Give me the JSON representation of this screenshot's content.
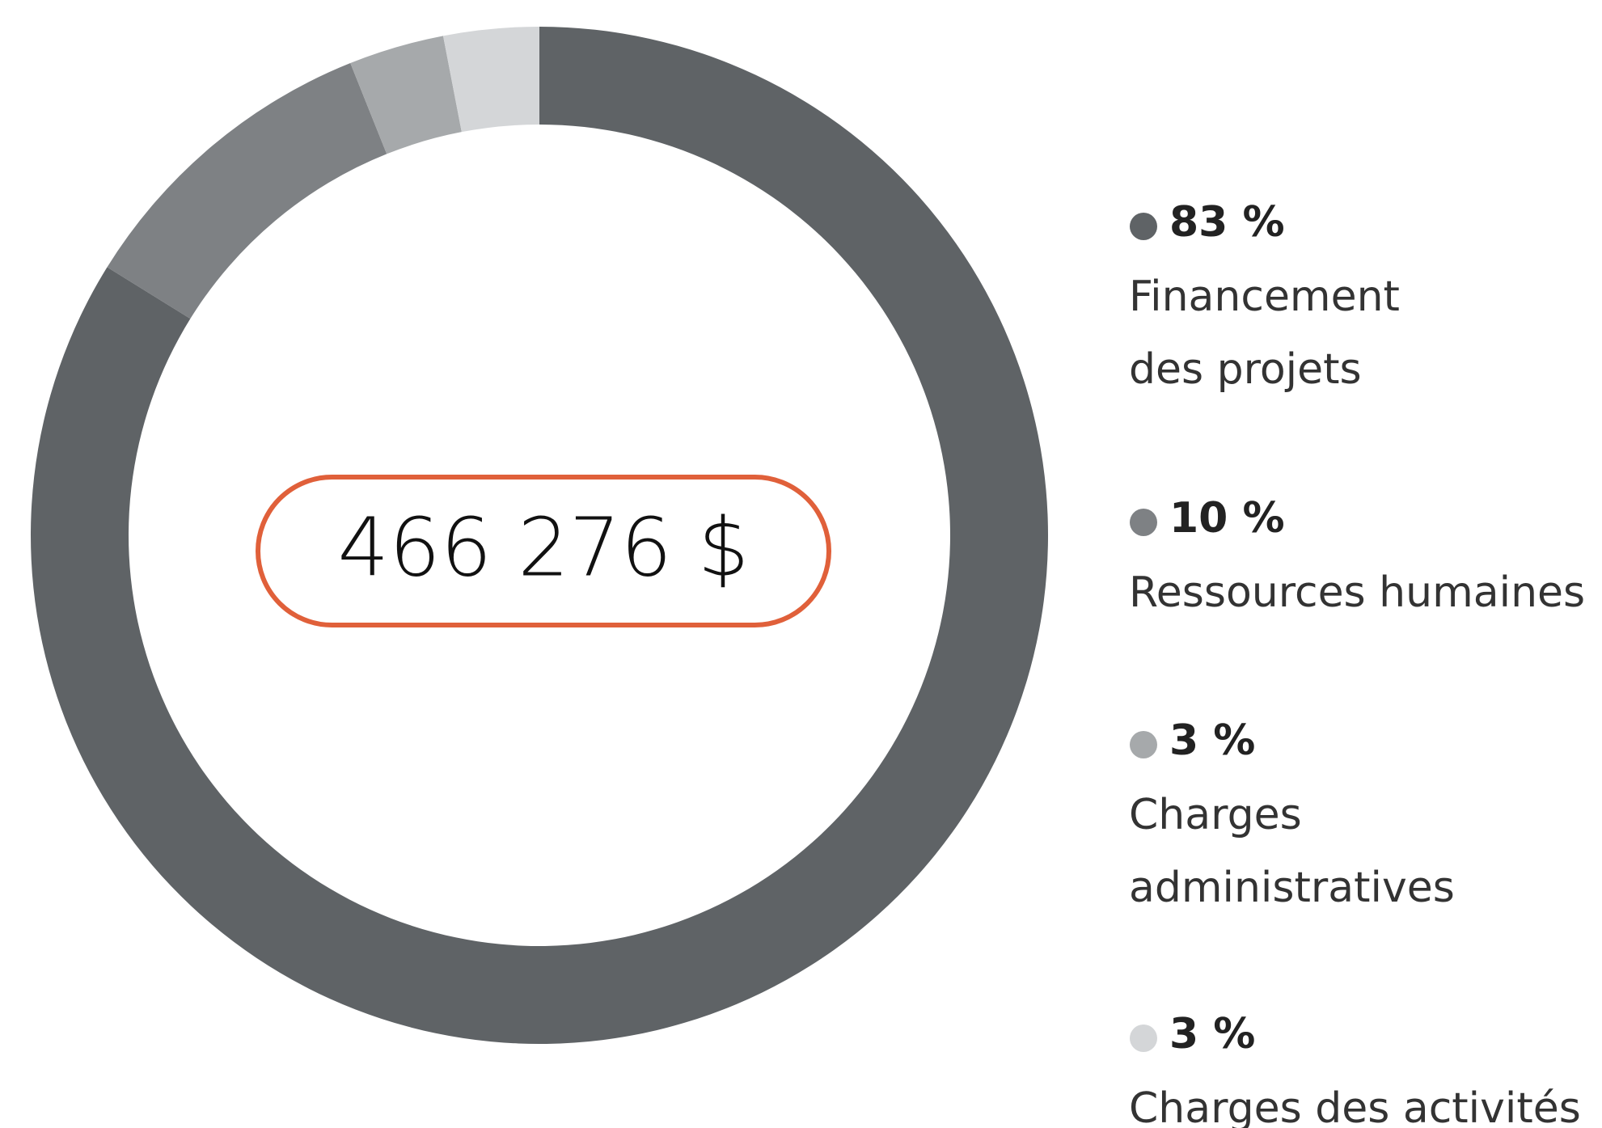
{
  "chart_data": {
    "type": "pie",
    "center_label": "466 276 $",
    "categories": [
      [
        "Financement",
        "des projets"
      ],
      [
        "Ressources humaines"
      ],
      [
        "Charges",
        "administratives"
      ],
      [
        "Charges des activités"
      ]
    ],
    "values": [
      83,
      10,
      3,
      3
    ],
    "value_labels": [
      "83 %",
      "10 %",
      "3 %",
      "3 %"
    ],
    "colors": [
      "#5f6366",
      "#7e8184",
      "#a6a9ab",
      "#d4d6d8"
    ],
    "donut": true,
    "legend": "right"
  }
}
